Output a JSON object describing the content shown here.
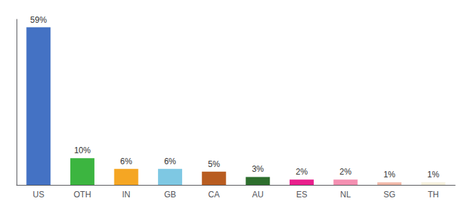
{
  "chart_data": {
    "type": "bar",
    "categories": [
      "US",
      "OTH",
      "IN",
      "GB",
      "CA",
      "AU",
      "ES",
      "NL",
      "SG",
      "TH"
    ],
    "values": [
      59,
      10,
      6,
      6,
      5,
      3,
      2,
      2,
      1,
      1
    ],
    "value_labels": [
      "59%",
      "10%",
      "6%",
      "6%",
      "5%",
      "3%",
      "2%",
      "2%",
      "1%",
      "1%"
    ],
    "colors": [
      "#4472c4",
      "#3cb540",
      "#f5a623",
      "#7ec8e3",
      "#b85c20",
      "#2d6e2d",
      "#e91e8c",
      "#f48fb1",
      "#f0b8a8",
      "#f5f0dc"
    ],
    "ylim": [
      0,
      62
    ],
    "data_labels": true,
    "tick_labels": "x",
    "grid": false
  }
}
